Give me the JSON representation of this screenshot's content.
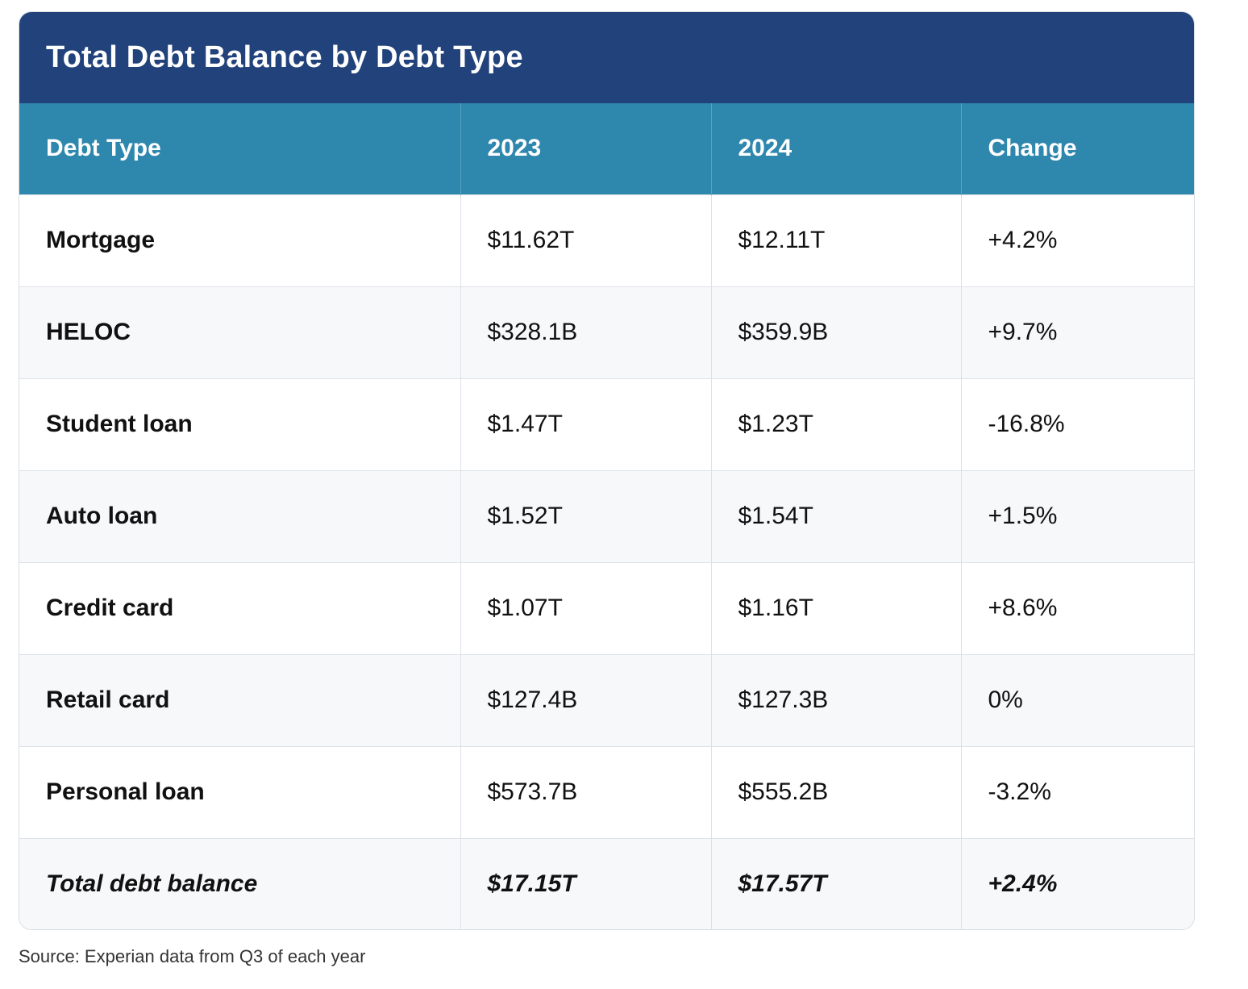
{
  "title": "Total Debt Balance by Debt Type",
  "table": {
    "headers": [
      "Debt Type",
      "2023",
      "2024",
      "Change"
    ],
    "rows": [
      [
        "Mortgage",
        "$11.62T",
        "$12.11T",
        "+4.2%"
      ],
      [
        "HELOC",
        "$328.1B",
        "$359.9B",
        "+9.7%"
      ],
      [
        "Student loan",
        "$1.47T",
        "$1.23T",
        "-16.8%"
      ],
      [
        "Auto loan",
        "$1.52T",
        "$1.54T",
        "+1.5%"
      ],
      [
        "Credit card",
        "$1.07T",
        "$1.16T",
        "+8.6%"
      ],
      [
        "Retail card",
        "$127.4B",
        "$127.3B",
        "0%"
      ],
      [
        "Personal loan",
        "$573.7B",
        "$555.2B",
        "-3.2%"
      ]
    ],
    "total": [
      "Total debt balance",
      "$17.15T",
      "$17.57T",
      "+2.4%"
    ]
  },
  "source": "Source: Experian data from Q3 of each year",
  "colors": {
    "title_bg": "#21427a",
    "header_bg": "#2e87ad",
    "alt_row_bg": "#f7f8fa"
  }
}
